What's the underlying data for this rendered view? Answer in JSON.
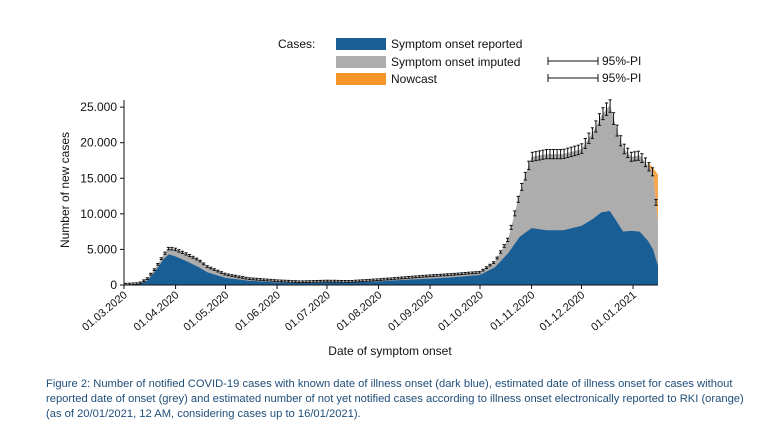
{
  "chart_data": {
    "type": "area",
    "legend_title": "Cases:",
    "legend_placement": "top",
    "series": [
      {
        "name": "Symptom onset reported",
        "color": "#1a5e96"
      },
      {
        "name": "Symptom onset imputed",
        "color": "#adadad"
      },
      {
        "name": "Nowcast",
        "color": "#f5962b"
      }
    ],
    "pi_label": "95%-PI",
    "xlabel": "Date of symptom onset",
    "ylabel": "Number of new cases",
    "ylim": [
      0,
      26000
    ],
    "yticks": [
      0,
      5000,
      10000,
      15000,
      20000,
      25000
    ],
    "ytick_labels": [
      "0",
      "5.000",
      "10.000",
      "15.000",
      "20.000",
      "25.000"
    ],
    "xlim": [
      "2020-03-01",
      "2021-01-16"
    ],
    "xticks": [
      "2020-03-01",
      "2020-04-01",
      "2020-05-01",
      "2020-06-01",
      "2020-07-01",
      "2020-08-01",
      "2020-09-01",
      "2020-10-01",
      "2020-11-01",
      "2020-12-01",
      "2021-01-01"
    ],
    "xtick_labels": [
      "01.03.2020",
      "01.04.2020",
      "01.05.2020",
      "01.06.2020",
      "01.07.2020",
      "01.08.2020",
      "01.09.2020",
      "01.10.2020",
      "01.11.2020",
      "01.12.2020",
      "01.01.2021"
    ],
    "grid": false,
    "data": {
      "dates": [
        "2020-03-01",
        "2020-03-10",
        "2020-03-15",
        "2020-03-20",
        "2020-03-25",
        "2020-03-28",
        "2020-04-01",
        "2020-04-08",
        "2020-04-15",
        "2020-04-20",
        "2020-05-01",
        "2020-05-15",
        "2020-06-01",
        "2020-06-15",
        "2020-07-01",
        "2020-07-15",
        "2020-08-01",
        "2020-08-15",
        "2020-09-01",
        "2020-09-15",
        "2020-10-01",
        "2020-10-10",
        "2020-10-18",
        "2020-10-25",
        "2020-11-01",
        "2020-11-10",
        "2020-11-20",
        "2020-12-01",
        "2020-12-08",
        "2020-12-13",
        "2020-12-18",
        "2020-12-22",
        "2020-12-26",
        "2020-12-31",
        "2021-01-05",
        "2021-01-10",
        "2021-01-13",
        "2021-01-16"
      ],
      "reported": [
        50,
        150,
        600,
        2000,
        3700,
        4300,
        4000,
        3300,
        2500,
        1800,
        1000,
        600,
        350,
        300,
        350,
        350,
        500,
        700,
        900,
        1100,
        1400,
        2500,
        4500,
        6800,
        8000,
        7700,
        7700,
        8300,
        9300,
        10200,
        10400,
        9000,
        7500,
        7600,
        7500,
        6200,
        5000,
        2700
      ],
      "total": [
        100,
        200,
        900,
        2400,
        4300,
        5200,
        5000,
        4300,
        3500,
        2600,
        1500,
        900,
        600,
        450,
        550,
        500,
        750,
        1000,
        1300,
        1500,
        1800,
        3300,
        6500,
        13000,
        18000,
        18400,
        18400,
        19100,
        21500,
        23800,
        25300,
        22000,
        19300,
        18000,
        18200,
        16800,
        15800,
        8800
      ],
      "nowcast_upper": [
        null,
        null,
        null,
        null,
        null,
        null,
        null,
        null,
        null,
        null,
        null,
        null,
        null,
        null,
        null,
        null,
        null,
        null,
        null,
        null,
        null,
        null,
        null,
        null,
        null,
        null,
        null,
        null,
        null,
        null,
        null,
        null,
        null,
        null,
        null,
        17200,
        16500,
        15500
      ],
      "nowcast_lower": [
        null,
        null,
        null,
        null,
        null,
        null,
        null,
        null,
        null,
        null,
        null,
        null,
        null,
        null,
        null,
        null,
        null,
        null,
        null,
        null,
        null,
        null,
        null,
        null,
        null,
        null,
        null,
        null,
        null,
        null,
        null,
        null,
        null,
        null,
        null,
        16300,
        14000,
        9500
      ]
    }
  },
  "caption": "Figure 2: Number of notified COVID-19 cases with known date of illness onset (dark blue), estimated date of illness onset for cases without reported date of onset (grey) and estimated number of not yet notified cases according to illness onset electronically reported to RKI (orange) (as of 20/01/2021, 12 AM, considering cases up to 16/01/2021)."
}
